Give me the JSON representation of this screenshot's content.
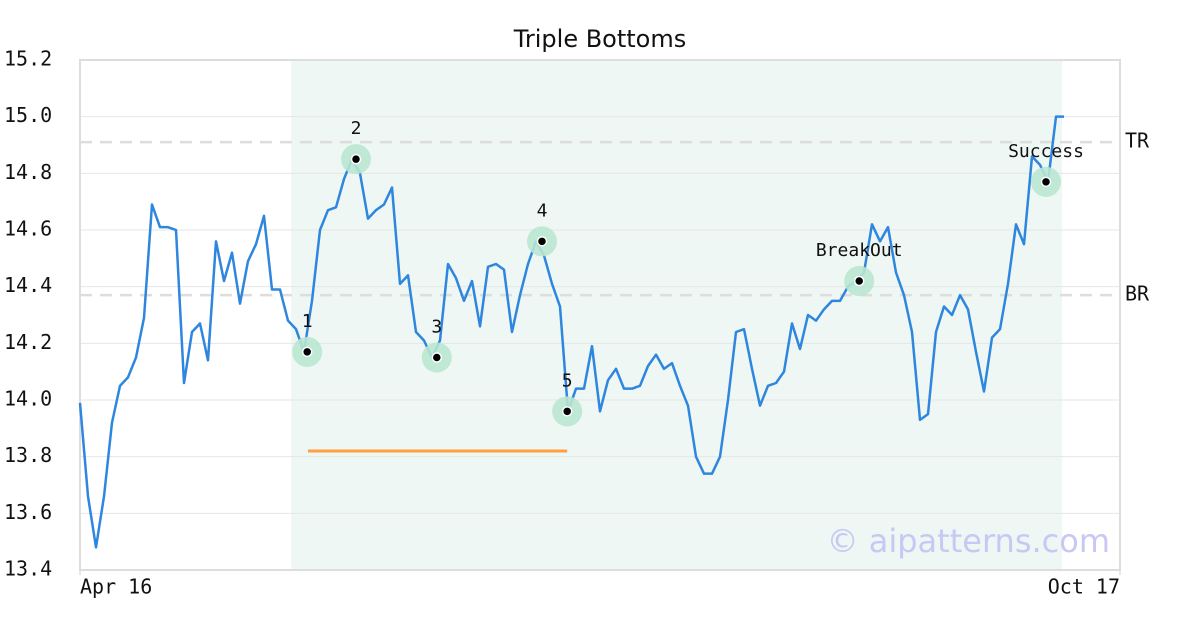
{
  "chart_data": {
    "type": "line",
    "title": "Triple Bottoms",
    "color": "#2e86de",
    "x": [
      0,
      1,
      2,
      3,
      4,
      5,
      6,
      7,
      8,
      9,
      10,
      11,
      12,
      13,
      14,
      15,
      16,
      17,
      18,
      19,
      20,
      21,
      22,
      23,
      24,
      25,
      26,
      27,
      28,
      29,
      30,
      31,
      32,
      33,
      34,
      35,
      36,
      37,
      38,
      39,
      40,
      41,
      42,
      43,
      44,
      45,
      46,
      47,
      48,
      49,
      50,
      51,
      52,
      53,
      54,
      55,
      56,
      57,
      58,
      59,
      60,
      61,
      62,
      63,
      64,
      65,
      66,
      67,
      68,
      69,
      70,
      71,
      72,
      73,
      74,
      75,
      76,
      77,
      78,
      79,
      80,
      81,
      82,
      83,
      84,
      85,
      86,
      87,
      88,
      89,
      90,
      91,
      92,
      93,
      94,
      95,
      96,
      97,
      98,
      99,
      100,
      101,
      102,
      103,
      104,
      105,
      106,
      107,
      108,
      109,
      110,
      111,
      112,
      113,
      114,
      115,
      116,
      117,
      118,
      119,
      120,
      121,
      122,
      123
    ],
    "values": [
      13.99,
      13.66,
      13.48,
      13.66,
      13.92,
      14.05,
      14.08,
      14.15,
      14.29,
      14.69,
      14.61,
      14.61,
      14.6,
      14.06,
      14.24,
      14.27,
      14.14,
      14.56,
      14.42,
      14.52,
      14.34,
      14.49,
      14.55,
      14.65,
      14.39,
      14.39,
      14.28,
      14.25,
      14.17,
      14.35,
      14.6,
      14.67,
      14.68,
      14.78,
      14.85,
      14.8,
      14.64,
      14.67,
      14.69,
      14.75,
      14.41,
      14.44,
      14.24,
      14.21,
      14.15,
      14.21,
      14.48,
      14.43,
      14.35,
      14.42,
      14.26,
      14.47,
      14.48,
      14.46,
      14.24,
      14.37,
      14.48,
      14.56,
      14.51,
      14.41,
      14.33,
      13.96,
      14.04,
      14.04,
      14.19,
      13.96,
      14.07,
      14.11,
      14.04,
      14.04,
      14.05,
      14.12,
      14.16,
      14.11,
      14.13,
      14.05,
      13.98,
      13.8,
      13.74,
      13.74,
      13.8,
      14.0,
      14.24,
      14.25,
      14.11,
      13.98,
      14.05,
      14.06,
      14.1,
      14.27,
      14.18,
      14.3,
      14.28,
      14.32,
      14.35,
      14.35,
      14.4,
      14.42,
      14.45,
      14.62,
      14.56,
      14.61,
      14.45,
      14.37,
      14.24,
      13.93,
      13.95,
      14.24,
      14.33,
      14.3,
      14.37,
      14.32,
      14.17,
      14.03,
      14.22,
      14.25,
      14.41,
      14.62,
      14.55,
      14.86,
      14.83,
      14.77,
      15.0,
      15.0
    ],
    "xlim": [
      0,
      130
    ],
    "xticks": [
      {
        "value": 0,
        "label": "Apr 16"
      },
      {
        "value": 130,
        "label": "Oct 17"
      }
    ],
    "ylim": [
      13.4,
      15.2
    ],
    "yticks": [
      13.4,
      13.6,
      13.8,
      {
        "value": 14,
        "label": "14.0"
      },
      14.2,
      14.4,
      14.6,
      14.8,
      {
        "value": 15,
        "label": "15.0"
      },
      15.2
    ],
    "grid": true,
    "shaded_xrange": [
      26.4,
      122.75
    ],
    "levels": [
      {
        "label": "TR",
        "value": 14.91
      },
      {
        "label": "BR",
        "value": 14.37
      }
    ],
    "segment": {
      "y": 13.82,
      "x": [
        28.5,
        60.9
      ],
      "color": "#ff9f40"
    },
    "annotations": [
      {
        "label": "1",
        "x": 28.4,
        "y": 14.17
      },
      {
        "label": "2",
        "x": 34.5,
        "y": 14.85
      },
      {
        "label": "3",
        "x": 44.6,
        "y": 14.15
      },
      {
        "label": "4",
        "x": 57.75,
        "y": 14.56
      },
      {
        "label": "5",
        "x": 60.9,
        "y": 13.96
      },
      {
        "label": "BreakOut",
        "x": 97.4,
        "y": 14.42
      },
      {
        "label": "Success",
        "x": 120.75,
        "y": 14.77
      }
    ],
    "watermark": "© aipatterns.com"
  }
}
